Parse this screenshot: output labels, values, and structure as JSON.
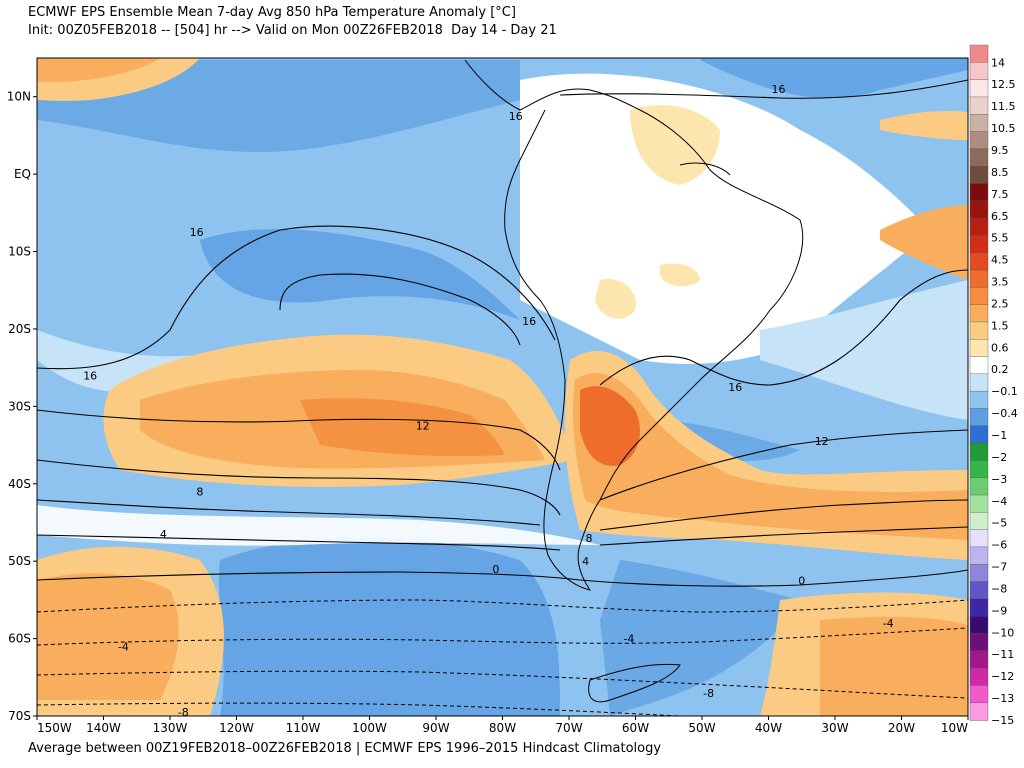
{
  "title_line1": "ECMWF EPS Ensemble Mean 7-day Avg 850 hPa Temperature Anomaly [°C]",
  "title_line2": "Init: 00Z05FEB2018 -- [504] hr --> Valid on Mon 00Z26FEB2018  Day 14 - Day 21",
  "footer": "Average between 00Z19FEB2018–00Z26FEB2018 | ECMWF EPS 1996–2015 Hindcast Climatology",
  "lat_labels": [
    "10N",
    "EQ",
    "10S",
    "20S",
    "30S",
    "40S",
    "50S",
    "60S",
    "70S"
  ],
  "lon_labels": [
    "150W",
    "140W",
    "130W",
    "120W",
    "110W",
    "100W",
    "90W",
    "80W",
    "70W",
    "60W",
    "50W",
    "40W",
    "30W",
    "20W",
    "10W"
  ],
  "colorbar_labels": [
    "14",
    "12.5",
    "11.5",
    "10.5",
    "9.5",
    "8.5",
    "7.5",
    "6.5",
    "5.5",
    "4.5",
    "3.5",
    "2.5",
    "1.5",
    "0.6",
    "0.2",
    "−0.1",
    "−0.4",
    "−1",
    "−2",
    "−3",
    "−4",
    "−5",
    "−6",
    "−7",
    "−8",
    "−9",
    "−10",
    "−11",
    "−12",
    "−13",
    "−15"
  ],
  "colorbar_colors": [
    "#ef8a8a",
    "#f7c7c7",
    "#fde8e8",
    "#e9d2cb",
    "#cbb0a5",
    "#ad8d80",
    "#8c6a5c",
    "#6e4c3e",
    "#7a0d0d",
    "#99140f",
    "#b51f14",
    "#d22c1a",
    "#e44a22",
    "#ef6d2b",
    "#f48d3d",
    "#f8ae5c",
    "#fbcb83",
    "#fde6ad",
    "#ffffff",
    "#c6e3f7",
    "#8ec3ef",
    "#5e9fe3",
    "#2f6fd1",
    "#1e9c3a",
    "#37b54a",
    "#6ccd70",
    "#a2e39e",
    "#cfeecb",
    "#e5e1fa",
    "#bcb4ef",
    "#8e85dd",
    "#5f56c8",
    "#3e27a6",
    "#3a0b6f",
    "#6e0f78",
    "#a01889",
    "#cf2aa6",
    "#f05bc9",
    "#fa9be1"
  ],
  "contour_labels": [
    {
      "lon": -78.0,
      "lat": 7.5,
      "text": "16"
    },
    {
      "lon": -38.5,
      "lat": 11.0,
      "text": "16"
    },
    {
      "lon": -126.0,
      "lat": -7.5,
      "text": "16"
    },
    {
      "lon": -142.0,
      "lat": -26.0,
      "text": "16"
    },
    {
      "lon": -76.0,
      "lat": -19.0,
      "text": "16"
    },
    {
      "lon": -45.0,
      "lat": -27.5,
      "text": "16"
    },
    {
      "lon": -92.0,
      "lat": -32.5,
      "text": "12"
    },
    {
      "lon": -32.0,
      "lat": -34.5,
      "text": "12"
    },
    {
      "lon": -125.5,
      "lat": -41.0,
      "text": "8"
    },
    {
      "lon": -67.0,
      "lat": -47.0,
      "text": "8"
    },
    {
      "lon": -131.0,
      "lat": -46.5,
      "text": "4"
    },
    {
      "lon": -67.5,
      "lat": -50.0,
      "text": "4"
    },
    {
      "lon": -81.0,
      "lat": -51.0,
      "text": "0"
    },
    {
      "lon": -35.0,
      "lat": -52.5,
      "text": "0"
    },
    {
      "lon": -61.0,
      "lat": -60.0,
      "text": "-4"
    },
    {
      "lon": -22.0,
      "lat": -58.0,
      "text": "-4"
    },
    {
      "lon": -137.0,
      "lat": -61.0,
      "text": "-4"
    },
    {
      "lon": -128.0,
      "lat": -69.5,
      "text": "-8"
    },
    {
      "lon": -49.0,
      "lat": -67.0,
      "text": "-8"
    }
  ]
}
